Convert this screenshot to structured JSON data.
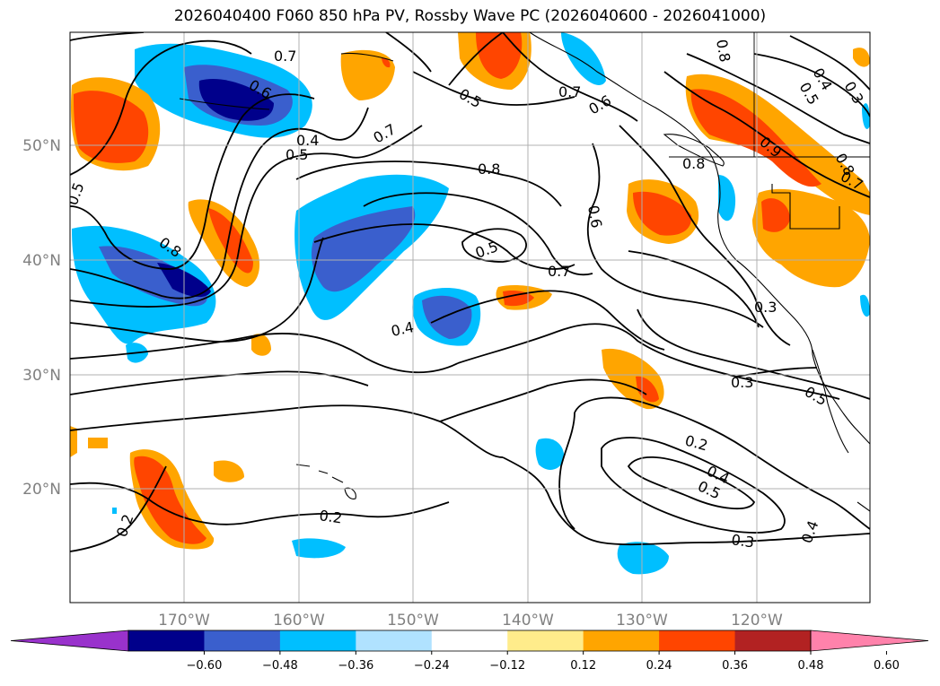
{
  "title": "2026040400 F060 850 hPa PV, Rossby Wave PC (2026040600 - 2026041000)",
  "lat_axis": [
    "50°N",
    "40°N",
    "30°N",
    "20°N"
  ],
  "lon_axis": [
    "170°W",
    "160°W",
    "150°W",
    "140°W",
    "130°W",
    "120°W"
  ],
  "colorbar": {
    "ticks": [
      "−0.60",
      "−0.48",
      "−0.36",
      "−0.24",
      "−0.12",
      "0.12",
      "0.24",
      "0.36",
      "0.48",
      "0.60"
    ],
    "colors": [
      "#9932cc",
      "#00008b",
      "#3a5fcd",
      "#00bfff",
      "#b0e2ff",
      "#ffffff",
      "#ffec8b",
      "#ffa500",
      "#ff4500",
      "#b22222",
      "#ff82ab"
    ]
  },
  "contour_labels": [
    {
      "text": "0.7"
    },
    {
      "text": "0.6"
    },
    {
      "text": "0.4"
    },
    {
      "text": "0.5"
    },
    {
      "text": "0.7"
    },
    {
      "text": "0.5"
    },
    {
      "text": "0.7"
    },
    {
      "text": "0.8"
    },
    {
      "text": "0.6"
    },
    {
      "text": "0.5"
    },
    {
      "text": "0.7"
    },
    {
      "text": "0.8"
    },
    {
      "text": "0.5"
    },
    {
      "text": "0.4"
    },
    {
      "text": "0.3"
    },
    {
      "text": "0.3"
    },
    {
      "text": "0.2"
    },
    {
      "text": "0.4"
    },
    {
      "text": "0.5"
    },
    {
      "text": "0.3"
    },
    {
      "text": "0.2"
    },
    {
      "text": "0.2"
    },
    {
      "text": "0.4"
    },
    {
      "text": "0.8"
    },
    {
      "text": "0.4"
    },
    {
      "text": "0.5"
    },
    {
      "text": "0.3"
    },
    {
      "text": "0.7"
    },
    {
      "text": "0.8"
    },
    {
      "text": "0.9"
    },
    {
      "text": "0.6"
    },
    {
      "text": "0.8"
    },
    {
      "text": "0.5"
    }
  ]
}
